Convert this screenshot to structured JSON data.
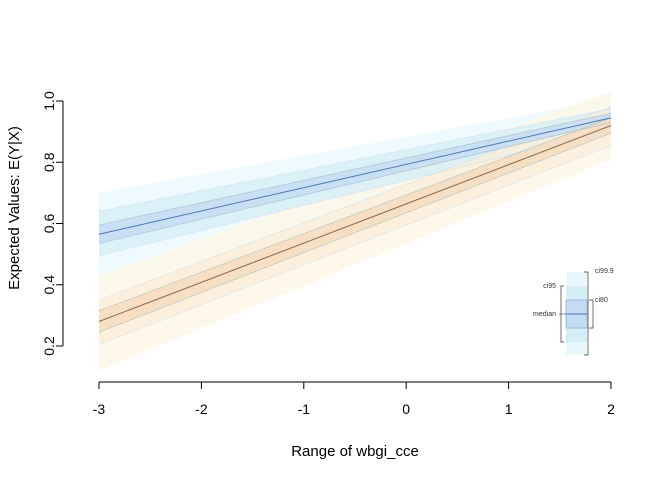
{
  "chart_data": {
    "type": "line",
    "title": "",
    "xlabel": "Range of wbgi_cce",
    "ylabel": "Expected Values: E(Y|X)",
    "xlim": [
      -3,
      2
    ],
    "ylim": [
      0.2,
      1.0
    ],
    "x_ticks": [
      -3,
      -2,
      -1,
      0,
      1,
      2
    ],
    "y_ticks": [
      0.2,
      0.4,
      0.6,
      0.8,
      1.0
    ],
    "x_tick_labels": [
      "-3",
      "-2",
      "-1",
      "0",
      "1",
      "2"
    ],
    "y_tick_labels": [
      "0.2",
      "0.4",
      "0.6",
      "0.8",
      "1.0"
    ],
    "x": [
      -3,
      2
    ],
    "series": [
      {
        "color": "#4a78b0",
        "band_colors": {
          "ci80": "#c5dcf5",
          "ci95": "#d3eef6",
          "ci99_9": "#e9f8fd"
        },
        "median": [
          0.565,
          0.945
        ],
        "ci80": [
          [
            0.535,
            0.595
          ],
          [
            0.93,
            0.96
          ]
        ],
        "ci95": [
          [
            0.495,
            0.64
          ],
          [
            0.905,
            0.975
          ]
        ],
        "ci99_9": [
          [
            0.39,
            0.7
          ],
          [
            0.85,
            1.005
          ]
        ]
      },
      {
        "color": "#8a6a4a",
        "band_colors": {
          "ci80": "#f6dcc0",
          "ci95": "#fbedd8",
          "ci99_9": "#fdf6e4"
        },
        "median": [
          0.28,
          0.92
        ],
        "ci80": [
          [
            0.245,
            0.315
          ],
          [
            0.895,
            0.945
          ]
        ],
        "ci95": [
          [
            0.205,
            0.35
          ],
          [
            0.855,
            0.98
          ]
        ],
        "ci99_9": [
          [
            0.12,
            0.43
          ],
          [
            0.81,
            1.03
          ]
        ]
      }
    ],
    "legend": {
      "placement": "bottom-right",
      "labels": {
        "median": "median",
        "ci80": "ci80",
        "ci95": "ci95",
        "ci99_9": "ci99.9"
      }
    }
  }
}
